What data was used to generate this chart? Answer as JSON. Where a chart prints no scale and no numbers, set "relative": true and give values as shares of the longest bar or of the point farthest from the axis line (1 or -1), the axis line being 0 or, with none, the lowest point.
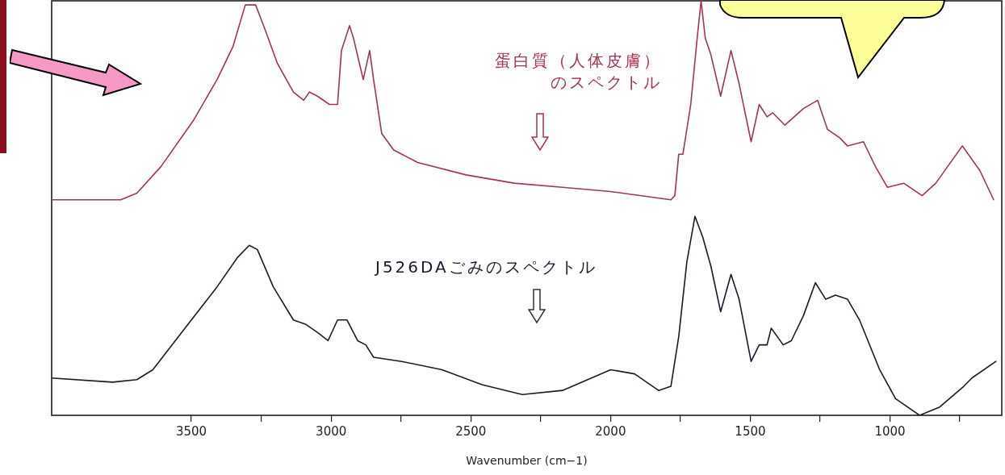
{
  "chart_data": {
    "type": "line",
    "relative": true,
    "xlabel": "Wavenumber (cm−1)",
    "xlim": [
      4000,
      600
    ],
    "xticks": [
      3500,
      {
        "value": 3250,
        "label": null
      },
      3000,
      {
        "value": 2750,
        "label": null
      },
      2500,
      {
        "value": 2250,
        "label": null
      },
      2000,
      {
        "value": 1750,
        "label": null
      },
      1500,
      {
        "value": 1250,
        "label": null
      },
      1000,
      {
        "value": 750,
        "label": null
      }
    ],
    "grid": false,
    "legend": false,
    "marker": "none",
    "line_style": "solid",
    "series": [
      {
        "name": "蛋白質（人体皮膚）のスペクトル",
        "color": "#a83250",
        "x": [
          4000,
          3753,
          3695,
          3609,
          3494,
          3408,
          3351,
          3307,
          3270,
          3236,
          3193,
          3135,
          3098,
          3078,
          3049,
          3006,
          2977,
          2963,
          2934,
          2920,
          2885,
          2862,
          2848,
          2819,
          2776,
          2690,
          2517,
          2345,
          2172,
          2000,
          1784,
          1770,
          1756,
          1741,
          1713,
          1690,
          1676,
          1661,
          1641,
          1606,
          1569,
          1540,
          1497,
          1468,
          1440,
          1420,
          1376,
          1310,
          1259,
          1224,
          1181,
          1152,
          1095,
          1052,
          1009,
          951,
          885,
          836,
          741,
          678,
          629
        ],
        "values": [
          0.52,
          0.52,
          0.536,
          0.6,
          0.71,
          0.81,
          0.89,
          0.99,
          0.99,
          0.93,
          0.85,
          0.78,
          0.76,
          0.78,
          0.77,
          0.75,
          0.75,
          0.88,
          0.94,
          0.91,
          0.81,
          0.88,
          0.81,
          0.68,
          0.64,
          0.61,
          0.58,
          0.56,
          0.55,
          0.54,
          0.52,
          0.53,
          0.63,
          0.63,
          0.75,
          0.91,
          1.0,
          0.91,
          0.87,
          0.77,
          0.88,
          0.8,
          0.66,
          0.75,
          0.72,
          0.73,
          0.7,
          0.74,
          0.76,
          0.69,
          0.67,
          0.65,
          0.66,
          0.6,
          0.55,
          0.56,
          0.53,
          0.56,
          0.65,
          0.59,
          0.52
        ]
      },
      {
        "name": "J526DAごみのスペクトル",
        "color": "#1a1a2e",
        "x": [
          4000,
          3782,
          3695,
          3638,
          3523,
          3408,
          3336,
          3293,
          3264,
          3207,
          3135,
          3092,
          3049,
          3011,
          2977,
          2943,
          2905,
          2876,
          2848,
          2747,
          2603,
          2460,
          2316,
          2172,
          2000,
          1914,
          1828,
          1784,
          1756,
          1727,
          1698,
          1670,
          1641,
          1606,
          1569,
          1540,
          1497,
          1468,
          1440,
          1425,
          1382,
          1353,
          1310,
          1267,
          1230,
          1195,
          1152,
          1109,
          1037,
          980,
          894,
          822,
          736,
          707,
          621
        ],
        "values": [
          0.09,
          0.08,
          0.086,
          0.11,
          0.21,
          0.31,
          0.38,
          0.41,
          0.4,
          0.31,
          0.23,
          0.22,
          0.2,
          0.18,
          0.23,
          0.23,
          0.18,
          0.17,
          0.14,
          0.13,
          0.11,
          0.074,
          0.05,
          0.06,
          0.11,
          0.1,
          0.06,
          0.07,
          0.19,
          0.37,
          0.48,
          0.43,
          0.36,
          0.25,
          0.34,
          0.28,
          0.13,
          0.17,
          0.17,
          0.21,
          0.17,
          0.18,
          0.24,
          0.32,
          0.28,
          0.29,
          0.28,
          0.23,
          0.11,
          0.04,
          0.0,
          0.02,
          0.07,
          0.09,
          0.13
        ]
      }
    ]
  }
}
